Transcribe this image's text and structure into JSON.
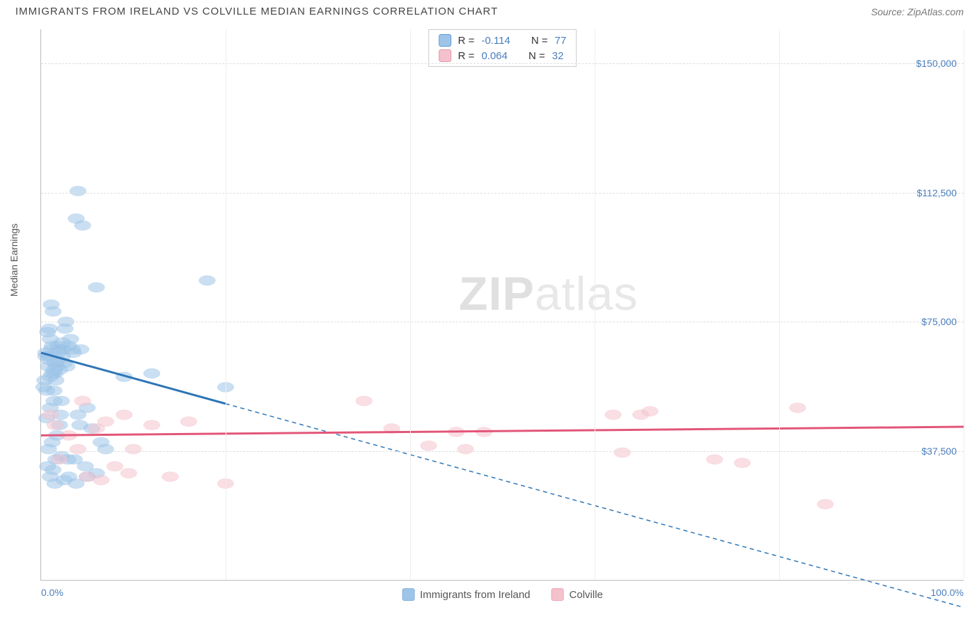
{
  "title": "IMMIGRANTS FROM IRELAND VS COLVILLE MEDIAN EARNINGS CORRELATION CHART",
  "source": "Source: ZipAtlas.com",
  "ylabel": "Median Earnings",
  "watermark_a": "ZIP",
  "watermark_b": "atlas",
  "chart": {
    "type": "scatter",
    "xlim": [
      0,
      100
    ],
    "ylim": [
      0,
      160000
    ],
    "xticks": [
      {
        "pos": 0,
        "label": "0.0%"
      },
      {
        "pos": 100,
        "label": "100.0%"
      }
    ],
    "xgrid": [
      20,
      40,
      60,
      80,
      100
    ],
    "yticks": [
      {
        "pos": 37500,
        "label": "$37,500"
      },
      {
        "pos": 75000,
        "label": "$75,000"
      },
      {
        "pos": 112500,
        "label": "$112,500"
      },
      {
        "pos": 150000,
        "label": "$150,000"
      }
    ],
    "grid_color": "#dddddd",
    "background": "#ffffff"
  },
  "series": [
    {
      "name": "Immigrants from Ireland",
      "R": "-0.114",
      "N": "77",
      "point_fill": "#9ec5e8",
      "point_stroke": "#5a9bd5",
      "line_color": "#2e75b6",
      "solid_end_x": 20,
      "trend": {
        "x1": 0,
        "y1": 66000,
        "x2": 100,
        "y2": -8000
      },
      "points": [
        [
          0.5,
          65000
        ],
        [
          0.8,
          62000
        ],
        [
          1.2,
          68000
        ],
        [
          1.0,
          70000
        ],
        [
          1.5,
          60000
        ],
        [
          2.0,
          67000
        ],
        [
          2.3,
          65000
        ],
        [
          2.5,
          63000
        ],
        [
          1.8,
          64000
        ],
        [
          1.4,
          55000
        ],
        [
          1.6,
          58000
        ],
        [
          2.2,
          52000
        ],
        [
          3.0,
          68000
        ],
        [
          3.5,
          66000
        ],
        [
          0.7,
          72000
        ],
        [
          0.9,
          73000
        ],
        [
          1.1,
          80000
        ],
        [
          1.3,
          78000
        ],
        [
          2.8,
          62000
        ],
        [
          4.0,
          48000
        ],
        [
          5.0,
          50000
        ],
        [
          6.0,
          85000
        ],
        [
          4.5,
          103000
        ],
        [
          3.8,
          105000
        ],
        [
          3.2,
          70000
        ],
        [
          2.7,
          75000
        ],
        [
          2.4,
          67000
        ],
        [
          6.5,
          40000
        ],
        [
          4.2,
          45000
        ],
        [
          5.5,
          44000
        ],
        [
          7.0,
          38000
        ],
        [
          3.6,
          35000
        ],
        [
          4.8,
          33000
        ],
        [
          2.0,
          45000
        ],
        [
          1.7,
          42000
        ],
        [
          1.2,
          40000
        ],
        [
          0.8,
          38000
        ],
        [
          4.0,
          113000
        ],
        [
          0.6,
          47000
        ],
        [
          1.0,
          50000
        ],
        [
          1.4,
          52000
        ],
        [
          2.1,
          48000
        ],
        [
          9.0,
          59000
        ],
        [
          12.0,
          60000
        ],
        [
          18.0,
          87000
        ],
        [
          20.0,
          56000
        ],
        [
          1.5,
          28000
        ],
        [
          2.5,
          29000
        ],
        [
          3.0,
          30000
        ],
        [
          5.0,
          30000
        ],
        [
          6.0,
          31000
        ],
        [
          3.8,
          28000
        ],
        [
          1.0,
          30000
        ],
        [
          1.3,
          32000
        ],
        [
          0.7,
          33000
        ],
        [
          1.6,
          35000
        ],
        [
          2.2,
          36000
        ],
        [
          2.9,
          35000
        ],
        [
          1.9,
          68000
        ],
        [
          2.6,
          73000
        ],
        [
          1.1,
          67000
        ],
        [
          0.5,
          66000
        ],
        [
          0.9,
          65000
        ],
        [
          1.7,
          62000
        ],
        [
          2.0,
          61000
        ],
        [
          0.4,
          58000
        ],
        [
          0.3,
          56000
        ],
        [
          0.6,
          55000
        ],
        [
          1.2,
          60000
        ],
        [
          1.5,
          63000
        ],
        [
          0.8,
          64000
        ],
        [
          1.0,
          59000
        ],
        [
          1.4,
          61000
        ],
        [
          1.8,
          66000
        ],
        [
          2.3,
          69000
        ],
        [
          3.4,
          67000
        ],
        [
          4.3,
          67000
        ]
      ]
    },
    {
      "name": "Colville",
      "R": "0.064",
      "N": "32",
      "point_fill": "#f4c2cd",
      "point_stroke": "#e890a5",
      "line_color": "#e25578",
      "solid_end_x": 100,
      "trend": {
        "x1": 0,
        "y1": 42000,
        "x2": 100,
        "y2": 44500
      },
      "points": [
        [
          1.0,
          48000
        ],
        [
          2.0,
          35000
        ],
        [
          3.0,
          42000
        ],
        [
          1.5,
          45000
        ],
        [
          4.0,
          38000
        ],
        [
          5.0,
          30000
        ],
        [
          6.0,
          44000
        ],
        [
          7.0,
          46000
        ],
        [
          8.0,
          33000
        ],
        [
          9.0,
          48000
        ],
        [
          10.0,
          38000
        ],
        [
          12.0,
          45000
        ],
        [
          14.0,
          30000
        ],
        [
          16.0,
          46000
        ],
        [
          20.0,
          28000
        ],
        [
          35.0,
          52000
        ],
        [
          38.0,
          44000
        ],
        [
          42.0,
          39000
        ],
        [
          45.0,
          43000
        ],
        [
          46.0,
          38000
        ],
        [
          48.0,
          43000
        ],
        [
          62.0,
          48000
        ],
        [
          63.0,
          37000
        ],
        [
          65.0,
          48000
        ],
        [
          66.0,
          49000
        ],
        [
          73.0,
          35000
        ],
        [
          76.0,
          34000
        ],
        [
          82.0,
          50000
        ],
        [
          85.0,
          22000
        ],
        [
          4.5,
          52000
        ],
        [
          6.5,
          29000
        ],
        [
          9.5,
          31000
        ]
      ]
    }
  ],
  "legend": {
    "items": [
      {
        "label": "Immigrants from Ireland",
        "fill": "#9ec5e8",
        "stroke": "#7db0de"
      },
      {
        "label": "Colville",
        "fill": "#f4c2cd",
        "stroke": "#eaa3b4"
      }
    ]
  }
}
